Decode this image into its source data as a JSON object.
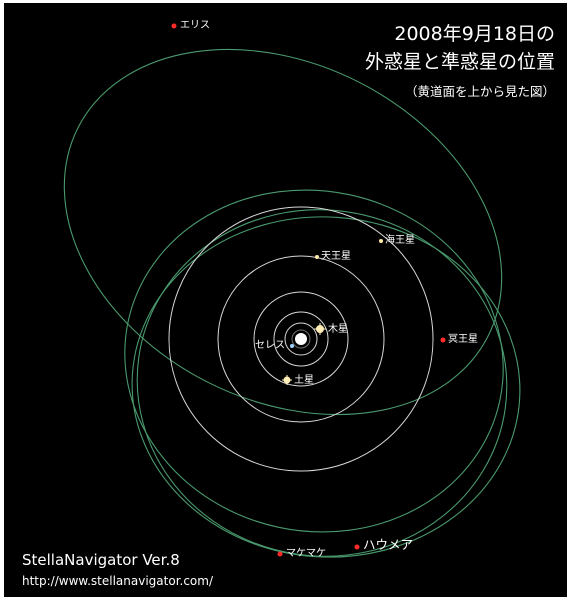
{
  "title": {
    "line1": "2008年9月18日の",
    "line2": "外惑星と準惑星の位置",
    "line3": "（黄道面を上から見た図）"
  },
  "objects": {
    "eris": "エリス",
    "neptune": "海王星",
    "uranus": "天王星",
    "jupiter": "木星",
    "ceres": "セレス",
    "pluto": "冥王星",
    "saturn": "土星",
    "makemake": "マケマケ",
    "haumea": "ハウメア"
  },
  "credit": {
    "app": "StellaNavigator Ver.8",
    "url": "http://www.stellanavigator.com/"
  },
  "colors": {
    "background": "#000000",
    "planet_orbit": "#d8d8d8",
    "dwarf_orbit": "#4a9a6e",
    "dwarf_marker": "#ff2a2a",
    "planet_marker": "#ffe9a8"
  }
}
